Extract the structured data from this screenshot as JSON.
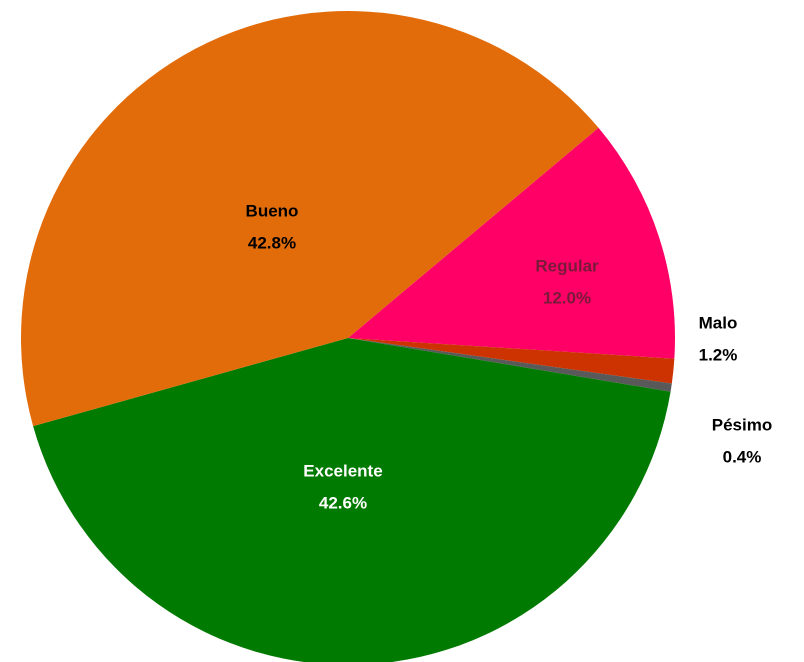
{
  "chart_data": {
    "type": "pie",
    "categories": [
      "Regular",
      "Malo",
      "Pésimo",
      "Excelente",
      "Bueno"
    ],
    "values": [
      12.0,
      1.2,
      0.4,
      42.6,
      42.8
    ],
    "value_labels": [
      "12.0%",
      "1.2%",
      "0.4%",
      "42.6%",
      "42.8%"
    ],
    "colors": [
      "#ff0066",
      "#cc3300",
      "#595959",
      "#007a00",
      "#e36c0a"
    ]
  }
}
